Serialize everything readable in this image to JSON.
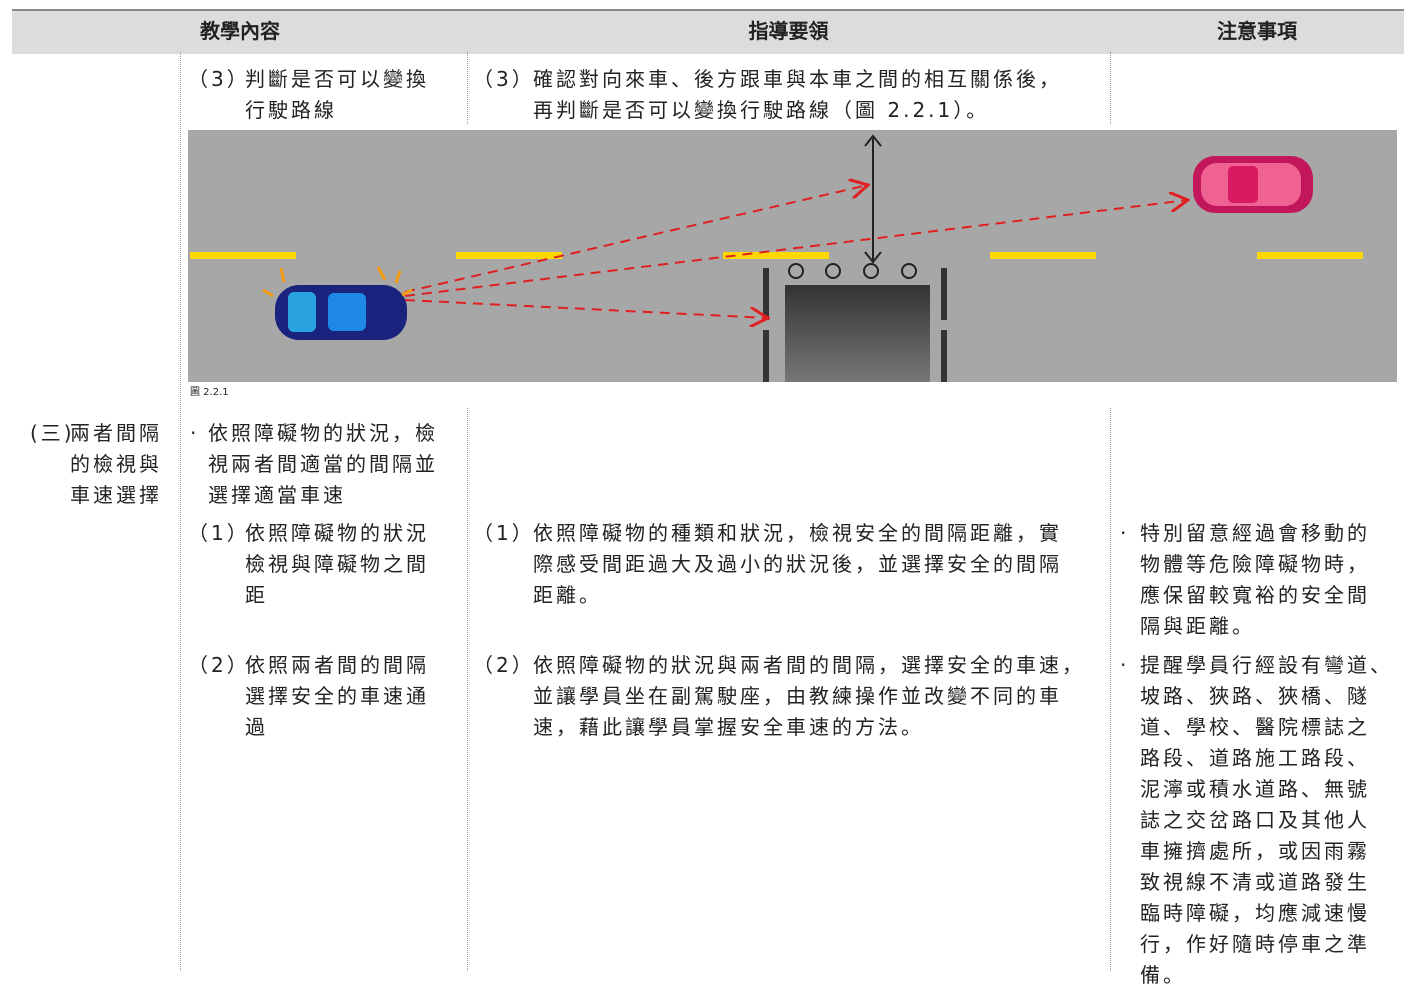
{
  "header": {
    "col1": "教學內容",
    "col2": "指導要領",
    "col3": "注意事項"
  },
  "row1": {
    "content": {
      "num": "（3）",
      "lines": [
        "判斷是否可以變換",
        "行駛路線"
      ]
    },
    "guidance": {
      "num": "（3）",
      "lines": [
        "確認對向來車、後方跟車與本車之間的相互關係後，",
        "再判斷是否可以變換行駛路線（圖 2.2.1）。"
      ]
    }
  },
  "figure_caption": "圖 2.2.1",
  "section": {
    "label": "(三)",
    "title": [
      "兩者間隔",
      "的檢視與",
      "車速選擇"
    ],
    "bullet": "·",
    "content": [
      "依照障礙物的狀況，檢",
      "視兩者間適當的間隔並",
      "選擇適當車速"
    ]
  },
  "row2": {
    "content": {
      "num": "（1）",
      "lines": [
        "依照障礙物的狀況",
        "檢視與障礙物之間",
        "距"
      ]
    },
    "guidance": {
      "num": "（1）",
      "lines": [
        "依照障礙物的種類和狀況，檢視安全的間隔距離，實",
        "際感受間距過大及過小的狀況後，並選擇安全的間隔",
        "距離。"
      ]
    },
    "notes": {
      "bullet": "·",
      "lines": [
        "特別留意經過會移動的",
        "物體等危險障礙物時，",
        "應保留較寬裕的安全間",
        "隔與距離。"
      ]
    }
  },
  "row3": {
    "content": {
      "num": "（2）",
      "lines": [
        "依照兩者間的間隔",
        "選擇安全的車速通",
        "過"
      ]
    },
    "guidance": {
      "num": "（2）",
      "lines": [
        "依照障礙物的狀況與兩者間的間隔，選擇安全的車速，",
        "並讓學員坐在副駕駛座，由教練操作並改變不同的車",
        "速，藉此讓學員掌握安全車速的方法。"
      ]
    },
    "notes": {
      "bullet": "·",
      "lines": [
        "提醒學員行經設有彎道、",
        "坡路、狹路、狹橋、隧",
        "道、學校、醫院標誌之",
        "路段、道路施工路段、",
        "泥濘或積水道路、無號",
        "誌之交岔路口及其他人",
        "車擁擠處所，或因雨霧",
        "致視線不清或道路發生",
        "臨時障礙，均應減速慢",
        "行，作好隨時停車之準",
        "備。"
      ]
    }
  }
}
